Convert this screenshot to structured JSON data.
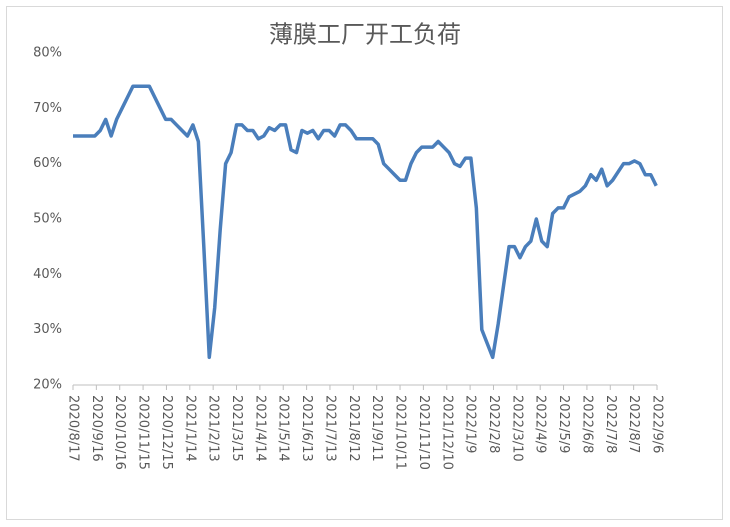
{
  "chart_data": {
    "type": "line",
    "title": "薄膜工厂开工负荷",
    "x": [
      "2020/8/17",
      "2020/8/24",
      "2020/8/31",
      "2020/9/7",
      "2020/9/14",
      "2020/9/21",
      "2020/9/28",
      "2020/10/5",
      "2020/10/12",
      "2020/10/19",
      "2020/10/26",
      "2020/11/2",
      "2020/11/9",
      "2020/11/16",
      "2020/11/23",
      "2020/11/30",
      "2020/12/7",
      "2020/12/14",
      "2020/12/21",
      "2020/12/28",
      "2021/1/4",
      "2021/1/11",
      "2021/1/18",
      "2021/1/25",
      "2021/2/1",
      "2021/2/8",
      "2021/2/15",
      "2021/2/22",
      "2021/3/1",
      "2021/3/8",
      "2021/3/15",
      "2021/3/22",
      "2021/3/29",
      "2021/4/5",
      "2021/4/12",
      "2021/4/19",
      "2021/4/26",
      "2021/5/3",
      "2021/5/10",
      "2021/5/17",
      "2021/5/24",
      "2021/5/31",
      "2021/6/7",
      "2021/6/14",
      "2021/6/21",
      "2021/6/28",
      "2021/7/5",
      "2021/7/12",
      "2021/7/19",
      "2021/7/26",
      "2021/8/2",
      "2021/8/9",
      "2021/8/16",
      "2021/8/23",
      "2021/8/30",
      "2021/9/6",
      "2021/9/13",
      "2021/9/20",
      "2021/9/27",
      "2021/10/4",
      "2021/10/11",
      "2021/10/18",
      "2021/10/25",
      "2021/11/1",
      "2021/11/8",
      "2021/11/15",
      "2021/11/22",
      "2021/11/29",
      "2021/12/6",
      "2021/12/13",
      "2021/12/20",
      "2021/12/27",
      "2022/1/3",
      "2022/1/10",
      "2022/1/17",
      "2022/1/24",
      "2022/1/31",
      "2022/2/7",
      "2022/2/14",
      "2022/2/21",
      "2022/2/28",
      "2022/3/7",
      "2022/3/14",
      "2022/3/21",
      "2022/3/28",
      "2022/4/4",
      "2022/4/11",
      "2022/4/18",
      "2022/4/25",
      "2022/5/2",
      "2022/5/9",
      "2022/5/16",
      "2022/5/23",
      "2022/5/30",
      "2022/6/6",
      "2022/6/13",
      "2022/6/20",
      "2022/6/27",
      "2022/7/4",
      "2022/7/11",
      "2022/7/18",
      "2022/7/25",
      "2022/8/1",
      "2022/8/8",
      "2022/8/15",
      "2022/8/22",
      "2022/8/29",
      "2022/9/5"
    ],
    "series": [
      {
        "color": "#4a7ebb",
        "values": [
          65,
          65,
          65,
          65,
          65,
          66,
          68,
          65,
          68,
          70,
          72,
          74,
          74,
          74,
          74,
          72,
          70,
          68,
          68,
          67,
          66,
          65,
          67,
          64,
          45,
          25,
          34,
          48,
          60,
          62,
          67,
          67,
          66,
          66,
          64.5,
          65,
          66.5,
          66,
          67,
          67,
          62.5,
          62,
          66,
          65.5,
          66,
          64.5,
          66,
          66,
          65,
          67,
          67,
          66,
          64.5,
          64.5,
          64.5,
          64.5,
          63.5,
          60,
          59,
          58,
          57,
          57,
          60,
          62,
          63,
          63,
          63,
          64,
          63,
          62,
          60,
          59.5,
          61,
          61,
          52,
          30,
          27.5,
          25,
          31,
          38,
          45,
          45,
          43,
          45,
          46,
          50,
          46,
          45,
          51,
          52,
          52,
          54,
          54.5,
          55,
          56,
          58,
          57,
          59,
          56,
          57,
          58.5,
          60,
          60,
          60.5,
          60,
          58,
          58,
          56
        ]
      }
    ],
    "xlim": [
      "2020/8/17",
      "2022/9/6"
    ],
    "xticks": [
      "2020/8/17",
      "2020/9/16",
      "2020/10/16",
      "2020/11/15",
      "2020/12/15",
      "2021/1/14",
      "2021/2/13",
      "2021/3/15",
      "2021/4/14",
      "2021/5/14",
      "2021/6/13",
      "2021/7/13",
      "2021/8/12",
      "2021/9/11",
      "2021/10/11",
      "2021/11/10",
      "2021/12/10",
      "2022/1/9",
      "2022/2/8",
      "2022/3/10",
      "2022/4/9",
      "2022/5/9",
      "2022/6/8",
      "2022/7/8",
      "2022/8/7",
      "2022/9/6"
    ],
    "ylim": [
      20,
      80
    ],
    "yticks": [
      {
        "value": 20,
        "label": "20%"
      },
      {
        "value": 30,
        "label": "30%"
      },
      {
        "value": 40,
        "label": "40%"
      },
      {
        "value": 50,
        "label": "50%"
      },
      {
        "value": 60,
        "label": "60%"
      },
      {
        "value": 70,
        "label": "70%"
      },
      {
        "value": 80,
        "label": "80%"
      }
    ],
    "grid": false
  }
}
